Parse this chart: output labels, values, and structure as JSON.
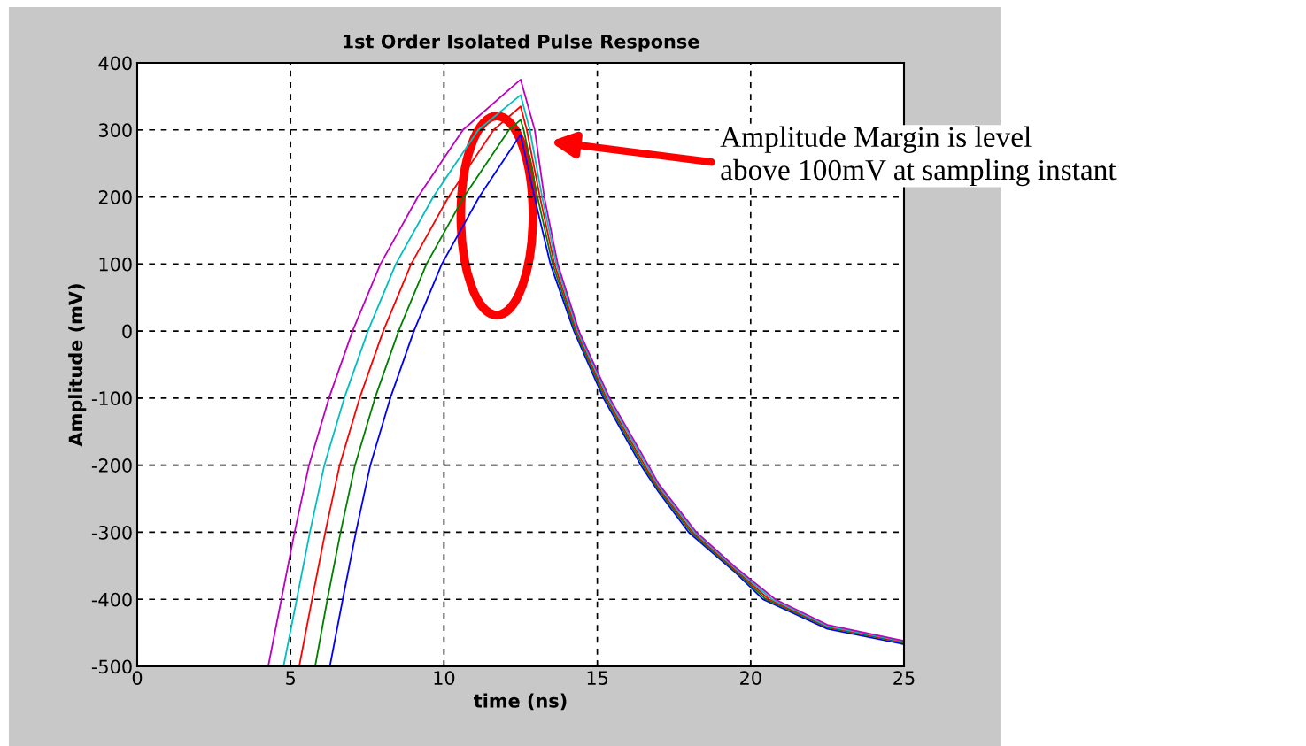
{
  "chart_data": {
    "type": "line",
    "title": "1st Order Isolated Pulse Response",
    "xlabel": "time (ns)",
    "ylabel": "Amplitude (mV)",
    "xlim": [
      0,
      25
    ],
    "ylim": [
      -500,
      400
    ],
    "xticks": [
      0,
      5,
      10,
      15,
      20,
      25
    ],
    "yticks": [
      -500,
      -400,
      -300,
      -200,
      -100,
      0,
      100,
      200,
      300,
      400
    ],
    "grid": true,
    "line_style": "solid",
    "series": [
      {
        "color": "#0000ff",
        "x": [
          0,
          6.28,
          6.7,
          7.13,
          7.6,
          8.25,
          9.02,
          9.93,
          11.15,
          12.5,
          12.95,
          13.47,
          14.24,
          15.2,
          16.42,
          17,
          17.98,
          19.5,
          20.4,
          22.5,
          25
        ],
        "values": [
          -500,
          -500,
          -400,
          -300,
          -200,
          -100,
          0,
          100,
          200,
          293,
          200,
          100,
          0,
          -100,
          -200,
          -240,
          -300,
          -360,
          -400,
          -444,
          -467
        ]
      },
      {
        "color": "#008000",
        "x": [
          0,
          5.8,
          6.2,
          6.63,
          7.1,
          7.75,
          8.52,
          9.43,
          10.65,
          12.12,
          12.5,
          12.6,
          13.05,
          13.54,
          14.28,
          15.25,
          16.48,
          17,
          18.05,
          19.5,
          20.5,
          22.5,
          25
        ],
        "values": [
          -500,
          -500,
          -400,
          -300,
          -200,
          -100,
          0,
          100,
          200,
          300,
          315,
          300,
          200,
          100,
          0,
          -100,
          -200,
          -237,
          -300,
          -358,
          -400,
          -442,
          -465
        ]
      },
      {
        "color": "#ff0000",
        "x": [
          0,
          5.28,
          5.7,
          6.13,
          6.6,
          7.25,
          8.02,
          8.93,
          10.15,
          11.62,
          12.5,
          12.7,
          13.13,
          13.6,
          14.32,
          15.3,
          16.54,
          17,
          18.11,
          19.5,
          20.6,
          22.5,
          25
        ],
        "values": [
          -500,
          -500,
          -400,
          -300,
          -200,
          -100,
          0,
          100,
          200,
          300,
          335,
          300,
          200,
          100,
          0,
          -100,
          -200,
          -234,
          -300,
          -356,
          -400,
          -441,
          -464
        ]
      },
      {
        "color": "#00bfbf",
        "x": [
          0,
          4.77,
          5.2,
          5.63,
          6.1,
          6.75,
          7.52,
          8.43,
          9.65,
          11.12,
          12.5,
          12.8,
          13.2,
          13.66,
          14.36,
          15.35,
          16.6,
          17,
          18.17,
          19.5,
          20.7,
          22.5,
          25
        ],
        "values": [
          -500,
          -500,
          -400,
          -300,
          -200,
          -100,
          0,
          100,
          200,
          300,
          352,
          300,
          200,
          100,
          0,
          -100,
          -200,
          -231,
          -300,
          -354,
          -400,
          -440,
          -463
        ]
      },
      {
        "color": "#bf00bf",
        "x": [
          0,
          4.27,
          4.7,
          5.13,
          5.6,
          6.25,
          7.02,
          7.93,
          9.15,
          10.62,
          12.5,
          12.96,
          13.27,
          13.71,
          14.4,
          15.4,
          16.66,
          17,
          18.23,
          19.5,
          20.8,
          22.5,
          25
        ],
        "values": [
          -500,
          -500,
          -400,
          -300,
          -200,
          -100,
          0,
          100,
          200,
          300,
          375,
          300,
          200,
          100,
          0,
          -100,
          -200,
          -228,
          -300,
          -352,
          -400,
          -438,
          -462
        ]
      }
    ],
    "annotations": [
      "Amplitude Margin is level\nabove 100mV at sampling instant"
    ]
  }
}
